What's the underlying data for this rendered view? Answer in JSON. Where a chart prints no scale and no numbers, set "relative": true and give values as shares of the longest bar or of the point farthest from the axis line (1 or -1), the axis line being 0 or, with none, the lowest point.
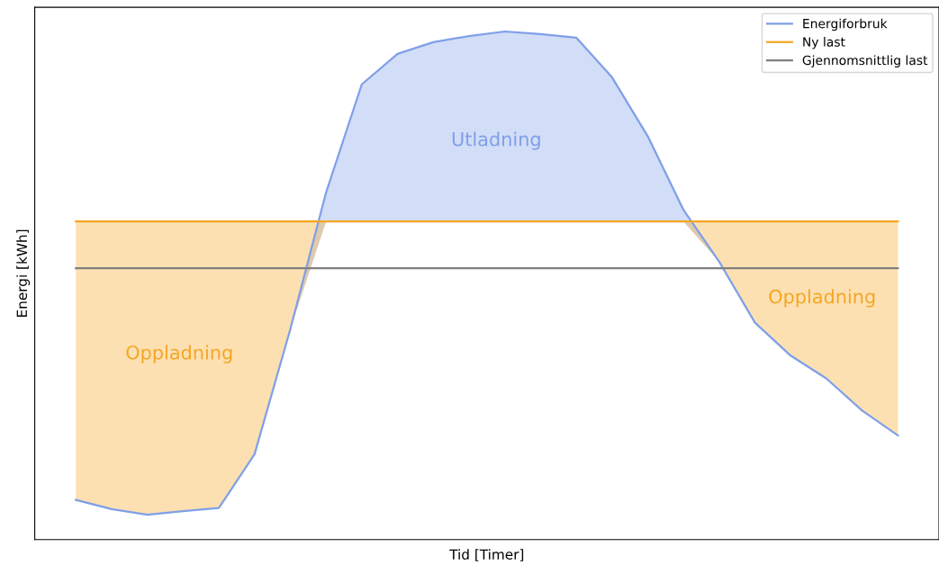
{
  "chart_data": {
    "type": "line",
    "relative": true,
    "xlabel": "Tid [Timer]",
    "ylabel": "Energi [kWh]",
    "categories": [
      null,
      null,
      null,
      null,
      null,
      null,
      null,
      null,
      null,
      null,
      null,
      null,
      null,
      null,
      null,
      null,
      null,
      null,
      null,
      null,
      null,
      null,
      null,
      null
    ],
    "legend": "top right",
    "series": [
      {
        "name": "Energiforbruk",
        "color": "#7f9fe8",
        "values": [
          0.078,
          0.06,
          0.049,
          0.056,
          0.062,
          0.168,
          0.414,
          0.683,
          0.896,
          0.956,
          0.979,
          0.991,
          1,
          0.995,
          0.988,
          0.91,
          0.794,
          0.649,
          0.547,
          0.427,
          0.362,
          0.317,
          0.254,
          0.205
        ],
        "lower": [
          0.078,
          0.06,
          0.049,
          0.056,
          0.062,
          0.168,
          0.414,
          0.626,
          0.626,
          0.626,
          0.626,
          0.626,
          0.626,
          0.626,
          0.626,
          0.626,
          0.626,
          0.626,
          0.547,
          0.427,
          0.362,
          0.317,
          0.254,
          0.205
        ],
        "upper": [
          0.078,
          0.06,
          0.049,
          0.056,
          0.062,
          0.168,
          0.414,
          0.683,
          0.896,
          0.956,
          0.979,
          0.991,
          1,
          0.995,
          0.988,
          0.91,
          0.794,
          0.649,
          0.547,
          0.427,
          0.362,
          0.317,
          0.254,
          0.205
        ]
      },
      {
        "name": "Ny last",
        "color": "#f5a623",
        "values": [
          0.626,
          0.626,
          0.626,
          0.626,
          0.626,
          0.626,
          0.626,
          0.626,
          0.626,
          0.626,
          0.626,
          0.626,
          0.626,
          0.626,
          0.626,
          0.626,
          0.626,
          0.626,
          0.626,
          0.626,
          0.626,
          0.626,
          0.626,
          0.626
        ],
        "lower": [
          0.078,
          0.06,
          0.049,
          0.056,
          0.062,
          0.168,
          0.414,
          0.626,
          0.626,
          0.626,
          0.626,
          0.626,
          0.626,
          0.626,
          0.626,
          0.626,
          0.626,
          0.626,
          0.547,
          0.427,
          0.362,
          0.317,
          0.254,
          0.205
        ],
        "upper": [
          0.626,
          0.626,
          0.626,
          0.626,
          0.626,
          0.626,
          0.626,
          0.626,
          0.626,
          0.626,
          0.626,
          0.626,
          0.626,
          0.626,
          0.626,
          0.626,
          0.626,
          0.626,
          0.626,
          0.626,
          0.626,
          0.626,
          0.626,
          0.626
        ]
      },
      {
        "name": "Gjennomsnittlig last",
        "color": "#808080",
        "values": [
          0.534,
          0.534,
          0.534,
          0.534,
          0.534,
          0.534,
          0.534,
          0.534,
          0.534,
          0.534,
          0.534,
          0.534,
          0.534,
          0.534,
          0.534,
          0.534,
          0.534,
          0.534,
          0.534,
          0.534,
          0.534,
          0.534,
          0.534,
          0.534
        ]
      }
    ],
    "annotations": [
      "Oppladning",
      "Utladning",
      "Oppladning"
    ]
  }
}
